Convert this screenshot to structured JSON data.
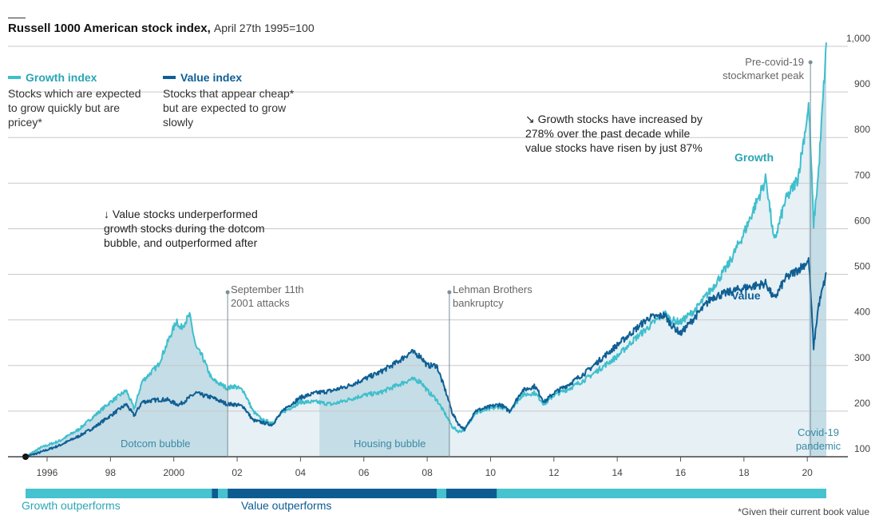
{
  "header": {
    "title": "Russell 1000 American stock index,",
    "subtitle": "April 27th 1995=100"
  },
  "legend": {
    "growth": {
      "label": "Growth index",
      "description": "Stocks which are expected to grow quickly but are pricey*"
    },
    "value": {
      "label": "Value index",
      "description": "Stocks that appear cheap* but are expected to grow slowly"
    }
  },
  "annotations": {
    "dotcom_note": "↓ Value stocks underperformed growth stocks during the dotcom bubble, and outperformed after",
    "decade_note": "↘ Growth stocks have increased by 278% over the past decade while value stocks have risen by just 87%",
    "sept11": "September 11th 2001 attacks",
    "lehman": "Lehman Brothers bankruptcy",
    "precovid": "Pre-covid-19 stockmarket peak",
    "series_label_growth": "Growth",
    "series_label_value": "Value"
  },
  "periods": {
    "dotcom": "Dotcom bubble",
    "housing": "Housing bubble",
    "covid": "Covid-19 pandemic"
  },
  "band": {
    "growth_label": "Growth outperforms",
    "value_label": "Value outperforms"
  },
  "footnote": "*Given their current book value",
  "colors": {
    "growth": "#3fbfcc",
    "value": "#0f5f94",
    "band_growth": "#45c3cf",
    "band_value": "#0c5c92",
    "shade_dark": "#c5dde6",
    "shade_light": "#e6f0f5"
  },
  "chart_data": {
    "type": "line",
    "ylim": [
      100,
      1000
    ],
    "yticks": [
      100,
      200,
      300,
      400,
      500,
      600,
      700,
      800,
      900,
      1000
    ],
    "ytick_labels": [
      "100",
      "200",
      "300",
      "400",
      "500",
      "600",
      "700",
      "800",
      "900",
      "1,000"
    ],
    "xlim": [
      1995.32,
      2020.6
    ],
    "xticks": [
      1996,
      1998,
      2000,
      2002,
      2004,
      2006,
      2008,
      2010,
      2012,
      2014,
      2016,
      2018,
      2020
    ],
    "xtick_labels": [
      "1996",
      "98",
      "2000",
      "02",
      "04",
      "06",
      "08",
      "10",
      "12",
      "14",
      "16",
      "18",
      "20"
    ],
    "series": [
      {
        "name": "Growth",
        "x": [
          1995.32,
          1995.8,
          1996.4,
          1997.0,
          1997.5,
          1998.0,
          1998.5,
          1998.75,
          1999.0,
          1999.5,
          1999.8,
          2000.1,
          2000.2,
          2000.5,
          2000.7,
          2000.9,
          2001.2,
          2001.7,
          2001.9,
          2002.2,
          2002.5,
          2002.8,
          2003.1,
          2003.5,
          2004.0,
          2004.5,
          2005.0,
          2005.5,
          2006.0,
          2006.5,
          2007.0,
          2007.5,
          2007.8,
          2008.0,
          2008.3,
          2008.6,
          2008.8,
          2009.0,
          2009.2,
          2009.5,
          2010.0,
          2010.3,
          2010.6,
          2011.0,
          2011.4,
          2011.7,
          2012.0,
          2012.5,
          2013.0,
          2013.5,
          2014.0,
          2014.5,
          2015.0,
          2015.5,
          2015.7,
          2016.0,
          2016.5,
          2017.0,
          2017.5,
          2018.0,
          2018.7,
          2018.95,
          2019.3,
          2019.7,
          2020.05,
          2020.2,
          2020.35,
          2020.6
        ],
        "values": [
          100,
          120,
          135,
          160,
          190,
          220,
          245,
          205,
          265,
          300,
          350,
          400,
          380,
          410,
          340,
          320,
          270,
          250,
          255,
          245,
          200,
          180,
          175,
          200,
          220,
          220,
          215,
          225,
          235,
          240,
          255,
          270,
          265,
          245,
          225,
          190,
          165,
          155,
          160,
          195,
          205,
          210,
          200,
          235,
          240,
          215,
          235,
          250,
          270,
          295,
          320,
          355,
          385,
          415,
          400,
          395,
          425,
          470,
          520,
          590,
          710,
          570,
          660,
          710,
          870,
          610,
          720,
          1000
        ]
      },
      {
        "name": "Value",
        "x": [
          1995.32,
          1995.8,
          1996.4,
          1997.0,
          1997.5,
          1998.0,
          1998.5,
          1998.75,
          1999.0,
          1999.5,
          1999.8,
          2000.1,
          2000.2,
          2000.5,
          2000.7,
          2000.9,
          2001.2,
          2001.7,
          2001.9,
          2002.2,
          2002.5,
          2002.8,
          2003.1,
          2003.5,
          2004.0,
          2004.5,
          2005.0,
          2005.5,
          2006.0,
          2006.5,
          2007.0,
          2007.5,
          2007.8,
          2008.0,
          2008.3,
          2008.6,
          2008.8,
          2009.0,
          2009.2,
          2009.5,
          2010.0,
          2010.3,
          2010.6,
          2011.0,
          2011.4,
          2011.7,
          2012.0,
          2012.5,
          2013.0,
          2013.5,
          2014.0,
          2014.5,
          2015.0,
          2015.5,
          2015.7,
          2016.0,
          2016.5,
          2017.0,
          2017.5,
          2018.0,
          2018.7,
          2018.95,
          2019.3,
          2019.7,
          2020.05,
          2020.2,
          2020.35,
          2020.6
        ],
        "values": [
          100,
          110,
          125,
          145,
          165,
          190,
          215,
          190,
          220,
          225,
          225,
          215,
          215,
          230,
          240,
          235,
          230,
          215,
          215,
          210,
          180,
          175,
          170,
          205,
          230,
          240,
          245,
          255,
          270,
          285,
          305,
          330,
          320,
          300,
          300,
          240,
          195,
          170,
          160,
          200,
          210,
          215,
          200,
          245,
          255,
          220,
          240,
          260,
          285,
          315,
          345,
          375,
          405,
          410,
          390,
          370,
          410,
          450,
          460,
          470,
          480,
          445,
          490,
          510,
          530,
          340,
          430,
          500
        ]
      }
    ],
    "shaded_periods": [
      {
        "label": "Dotcom bubble",
        "start": 1995.32,
        "end": 2001.7
      },
      {
        "label": "Housing bubble",
        "start": 2004.6,
        "end": 2008.7
      },
      {
        "label": "Covid-19 pandemic",
        "start": 2020.05,
        "end": 2020.6
      }
    ],
    "events": [
      {
        "label": "September 11th 2001 attacks",
        "x": 2001.7
      },
      {
        "label": "Lehman Brothers bankruptcy",
        "x": 2008.7
      },
      {
        "label": "Pre-covid-19 stockmarket peak",
        "x": 2020.1
      }
    ],
    "outperformance_band": [
      {
        "start": 1995.32,
        "end": 2001.2,
        "leader": "Growth"
      },
      {
        "start": 2001.2,
        "end": 2001.4,
        "leader": "Value"
      },
      {
        "start": 2001.4,
        "end": 2001.7,
        "leader": "Growth"
      },
      {
        "start": 2001.7,
        "end": 2008.3,
        "leader": "Value"
      },
      {
        "start": 2008.3,
        "end": 2008.6,
        "leader": "Growth"
      },
      {
        "start": 2008.6,
        "end": 2010.2,
        "leader": "Value"
      },
      {
        "start": 2010.2,
        "end": 2020.6,
        "leader": "Growth"
      }
    ]
  }
}
